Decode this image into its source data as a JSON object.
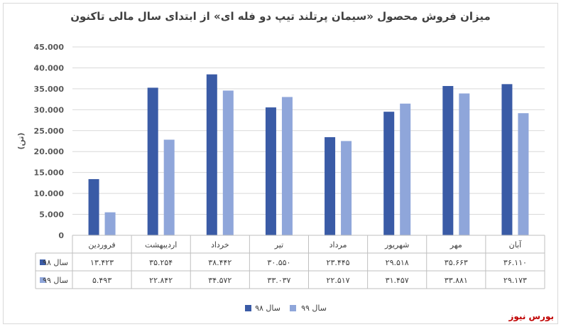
{
  "chart_data": {
    "type": "bar",
    "title": "میزان فروش محصول «سیمان پرتلند تیپ دو فله ای» از ابتدای سال مالی تاکنون",
    "ylabel": "(تن)",
    "xlabel": "",
    "ylim": [
      0,
      45000
    ],
    "yticks": [
      "0",
      "5.000",
      "10.000",
      "15.000",
      "20.000",
      "25.000",
      "30.000",
      "35.000",
      "40.000",
      "45.000"
    ],
    "categories": [
      "فروردین",
      "اردیبهشت",
      "خرداد",
      "تیر",
      "مرداد",
      "شهریور",
      "مهر",
      "آبان"
    ],
    "series": [
      {
        "name": "سال ۹۸",
        "color": "#3a5ba6",
        "values": [
          13423,
          35254,
          38442,
          30550,
          23445,
          29518,
          35663,
          36110
        ],
        "labels": [
          "۱۳.۴۲۳",
          "۳۵.۲۵۴",
          "۳۸.۴۴۲",
          "۳۰.۵۵۰",
          "۲۳.۴۴۵",
          "۲۹.۵۱۸",
          "۳۵.۶۶۳",
          "۳۶.۱۱۰"
        ]
      },
      {
        "name": "سال ۹۹",
        "color": "#8fa6da",
        "values": [
          5493,
          22842,
          34572,
          33037,
          22517,
          31457,
          33881,
          29173
        ],
        "labels": [
          "۵.۴۹۳",
          "۲۲.۸۴۲",
          "۳۴.۵۷۲",
          "۳۳.۰۳۷",
          "۲۲.۵۱۷",
          "۳۱.۴۵۷",
          "۳۳.۸۸۱",
          "۲۹.۱۷۳"
        ]
      }
    ],
    "grid": true,
    "legend_position": "bottom",
    "data_table": true
  },
  "watermark": "بورس نیوز"
}
